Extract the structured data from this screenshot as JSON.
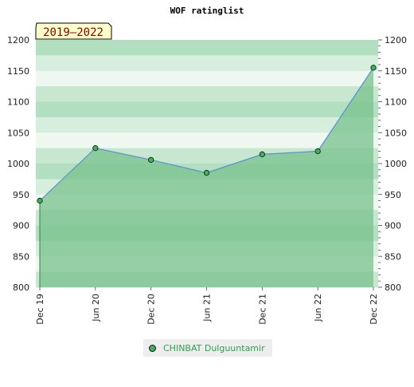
{
  "chart_data": {
    "type": "area",
    "title": "WOF ratinglist",
    "period_badge": "2019–2022",
    "categories": [
      "Dec 19",
      "Jun 20",
      "Dec 20",
      "Jun 21",
      "Dec 21",
      "Jun 22",
      "Dec 22"
    ],
    "series": [
      {
        "name": "CHINBAT Dulguuntamir",
        "values": [
          940,
          1025,
          1006,
          985,
          1015,
          1020,
          1155
        ]
      }
    ],
    "ylim": [
      800,
      1200
    ],
    "yticks": [
      800,
      850,
      900,
      950,
      1000,
      1050,
      1100,
      1150,
      1200
    ],
    "xlabel": "",
    "ylabel": "",
    "grid": true,
    "legend_position": "bottom",
    "colors": {
      "line": "#5b8fd1",
      "area": "#78c28c",
      "marker": "#3cb25a",
      "legend_text": "#2e9e4e",
      "badge_bg": "#ffffcc",
      "badge_text": "#8b0000"
    }
  }
}
